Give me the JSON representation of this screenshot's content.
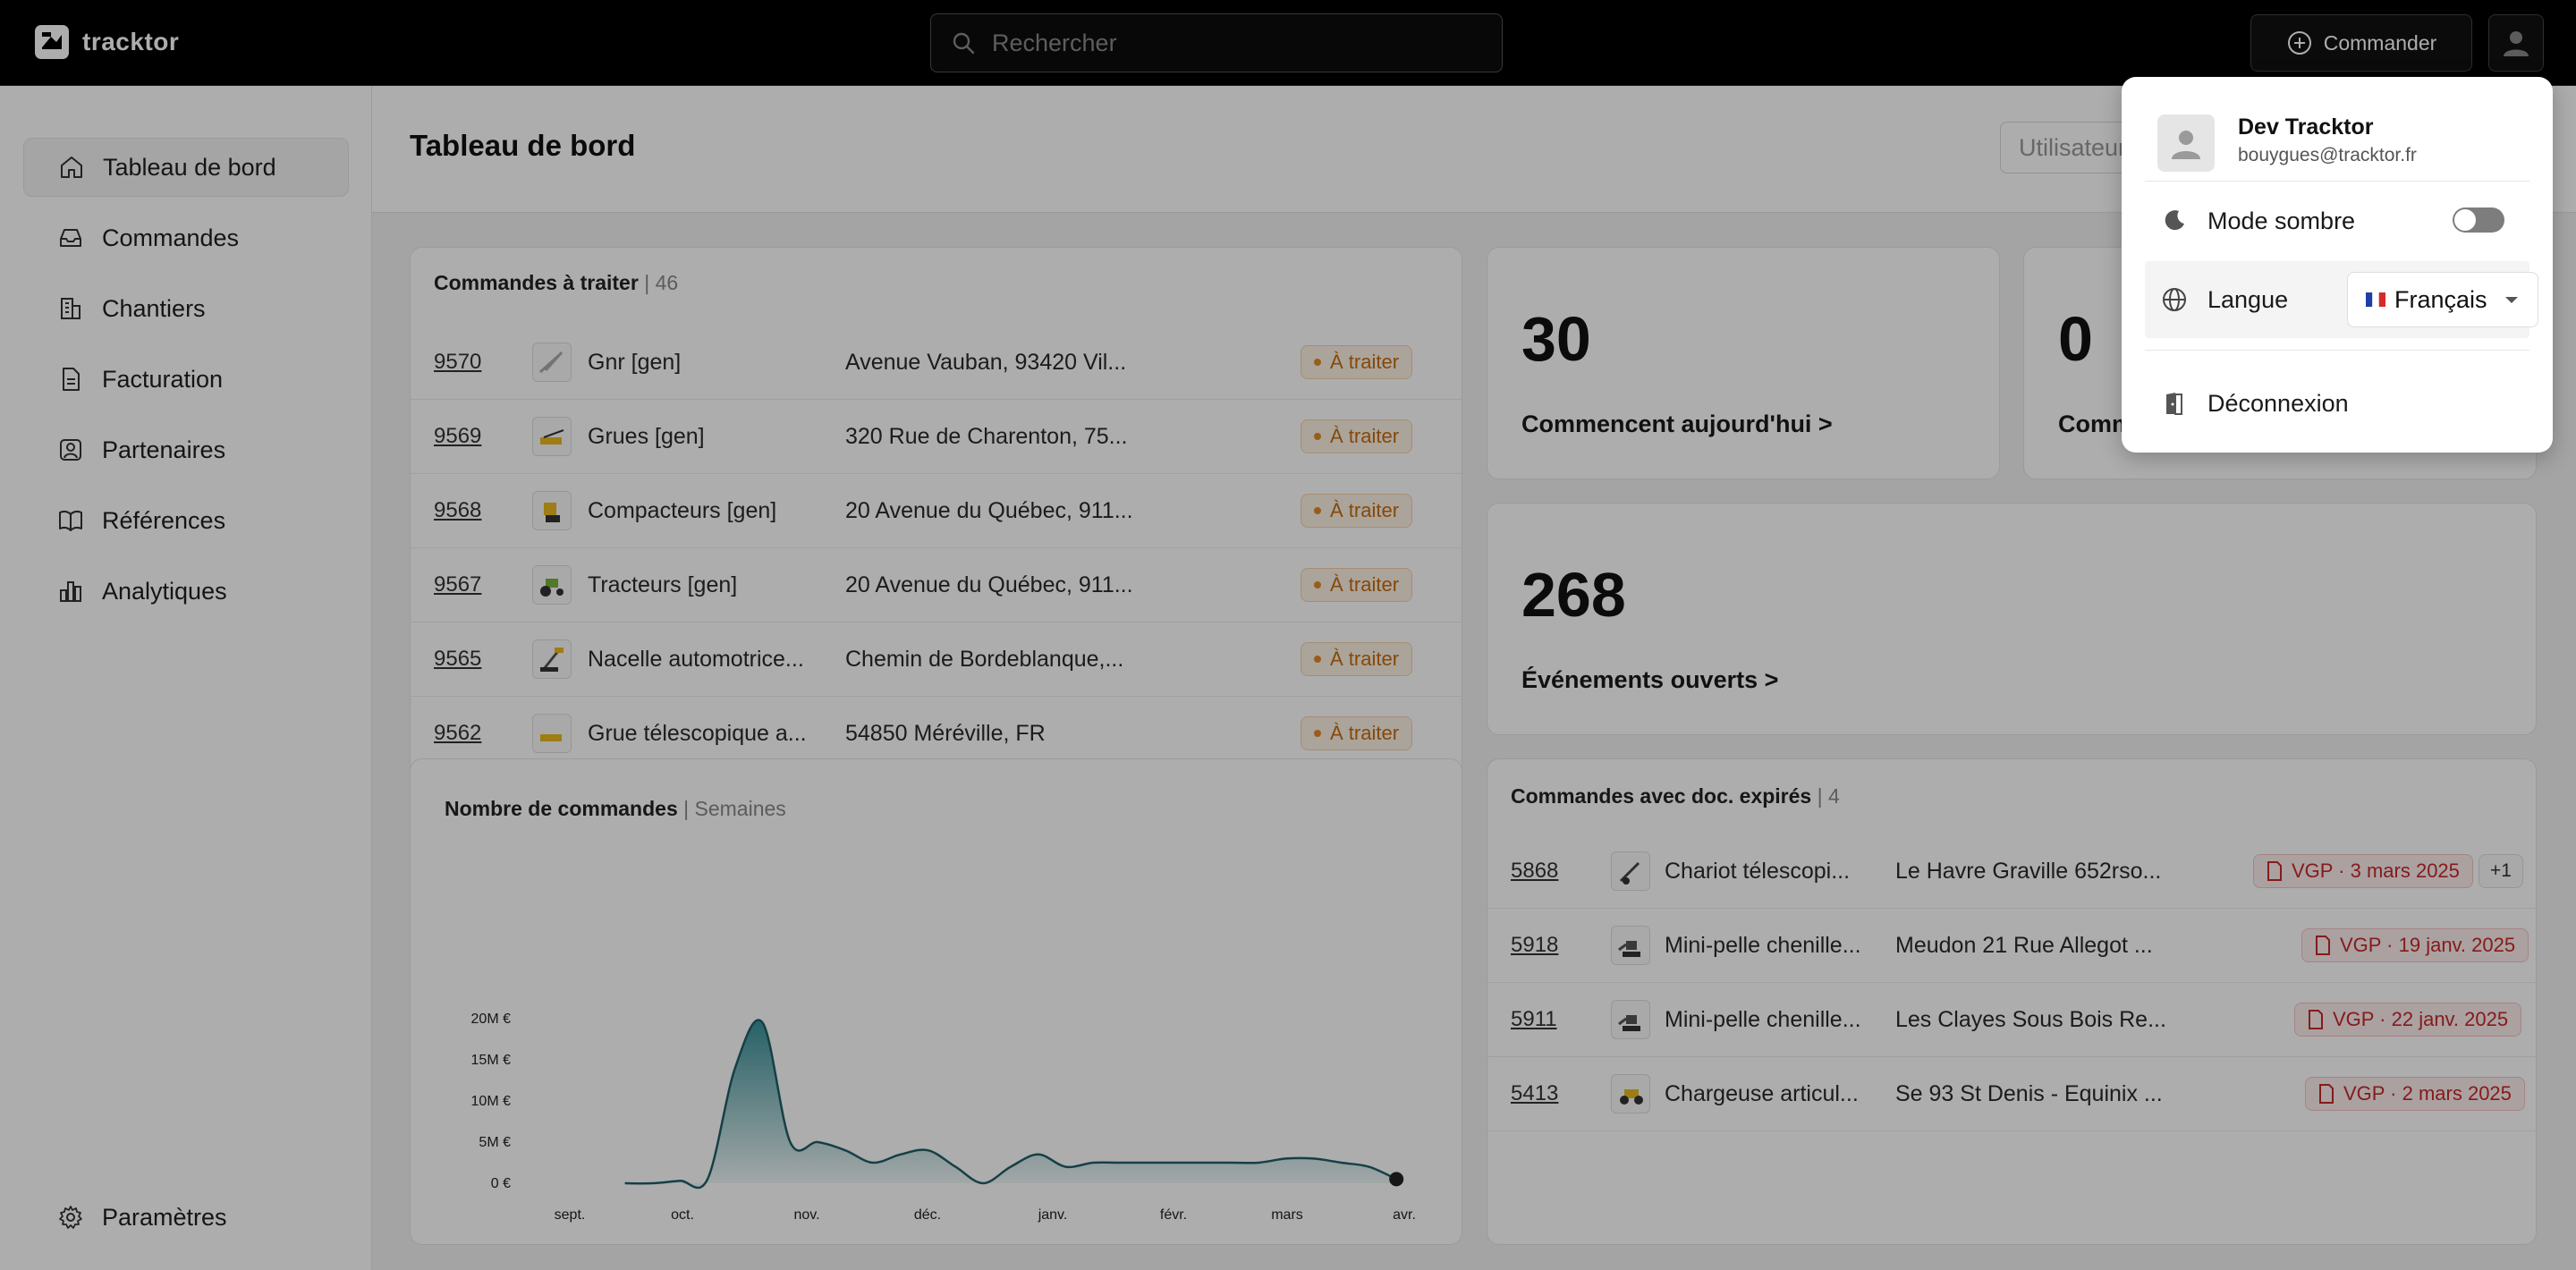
{
  "app": {
    "name": "tracktor"
  },
  "topbar": {
    "search_placeholder": "Rechercher",
    "order_button": "Commander"
  },
  "sidebar": {
    "items": [
      {
        "label": "Tableau de bord",
        "icon": "home-icon",
        "active": true
      },
      {
        "label": "Commandes",
        "icon": "inbox-icon"
      },
      {
        "label": "Chantiers",
        "icon": "building-icon"
      },
      {
        "label": "Facturation",
        "icon": "document-icon"
      },
      {
        "label": "Partenaires",
        "icon": "contact-icon"
      },
      {
        "label": "Références",
        "icon": "book-icon"
      },
      {
        "label": "Analytiques",
        "icon": "chart-bars-icon"
      }
    ],
    "settings": "Paramètres"
  },
  "page": {
    "title": "Tableau de bord",
    "user_filter": "Utilisateur"
  },
  "orders_to_process": {
    "title": "Commandes à traiter",
    "count": "| 46",
    "rows": [
      {
        "id": "9570",
        "name": "Gnr [gen]",
        "address": "Avenue Vauban, 93420 Vil...",
        "status": "À traiter"
      },
      {
        "id": "9569",
        "name": "Grues [gen]",
        "address": "320 Rue de Charenton, 75...",
        "status": "À traiter"
      },
      {
        "id": "9568",
        "name": "Compacteurs [gen]",
        "address": "20 Avenue du Québec, 911...",
        "status": "À traiter"
      },
      {
        "id": "9567",
        "name": "Tracteurs [gen]",
        "address": "20 Avenue du Québec, 911...",
        "status": "À traiter"
      },
      {
        "id": "9565",
        "name": "Nacelle automotrice...",
        "address": "Chemin de Bordeblanque,...",
        "status": "À traiter"
      },
      {
        "id": "9562",
        "name": "Grue télescopique a...",
        "address": "54850 Méréville, FR",
        "status": "À traiter"
      }
    ]
  },
  "stats": [
    {
      "value": "30",
      "label": "Commencent aujourd'hui >"
    },
    {
      "value": "0",
      "label": "Comm"
    },
    {
      "value": "268",
      "label": "Événements ouverts >"
    }
  ],
  "orders_chart": {
    "title": "Nombre de commandes",
    "subtitle": "| Semaines"
  },
  "chart_data": {
    "type": "area",
    "x_tick_labels": [
      "sept.",
      "oct.",
      "nov.",
      "déc.",
      "janv.",
      "févr.",
      "mars",
      "avr."
    ],
    "y_tick_labels": [
      "20M €",
      "15M €",
      "10M €",
      "5M €",
      "0 €"
    ],
    "ylim": [
      0,
      20000000
    ],
    "grid": false,
    "x": [
      "2024-09-15",
      "2024-09-22",
      "2024-09-29",
      "2024-10-06",
      "2024-10-13",
      "2024-10-20",
      "2024-10-27",
      "2024-11-03",
      "2024-11-10",
      "2024-11-17",
      "2024-11-24",
      "2024-12-01",
      "2024-12-08",
      "2024-12-15",
      "2024-12-22",
      "2024-12-29",
      "2025-01-05",
      "2025-01-12",
      "2025-01-19",
      "2025-01-26",
      "2025-02-02",
      "2025-02-09",
      "2025-02-16",
      "2025-02-23",
      "2025-03-02",
      "2025-03-09",
      "2025-03-16",
      "2025-03-23",
      "2025-03-30"
    ],
    "values": [
      0,
      0,
      300000,
      500000,
      14000000,
      19500000,
      5000000,
      5000000,
      4000000,
      2500000,
      3500000,
      4000000,
      2000000,
      0,
      2000000,
      3500000,
      2000000,
      2500000,
      2500000,
      2500000,
      2500000,
      2500000,
      2500000,
      2500000,
      3000000,
      3000000,
      2500000,
      2000000,
      500000
    ]
  },
  "expired_docs": {
    "title": "Commandes avec doc. expirés",
    "count": "| 4",
    "rows": [
      {
        "id": "5868",
        "name": "Chariot télescopi...",
        "address": "Le Havre Graville 652rso...",
        "doc": "VGP · 3 mars 2025",
        "extra": "+1"
      },
      {
        "id": "5918",
        "name": "Mini-pelle chenille...",
        "address": "Meudon 21 Rue Allegot ...",
        "doc": "VGP · 19 janv. 2025"
      },
      {
        "id": "5911",
        "name": "Mini-pelle chenille...",
        "address": "Les Clayes Sous Bois Re...",
        "doc": "VGP · 22 janv. 2025"
      },
      {
        "id": "5413",
        "name": "Chargeuse articul...",
        "address": "Se 93 St Denis - Equinix ...",
        "doc": "VGP · 2 mars 2025"
      }
    ]
  },
  "user_menu": {
    "name": "Dev Tracktor",
    "email": "bouygues@tracktor.fr",
    "dark_mode": "Mode sombre",
    "dark_mode_on": false,
    "language_label": "Langue",
    "language_value": "Français",
    "logout": "Déconnexion"
  }
}
